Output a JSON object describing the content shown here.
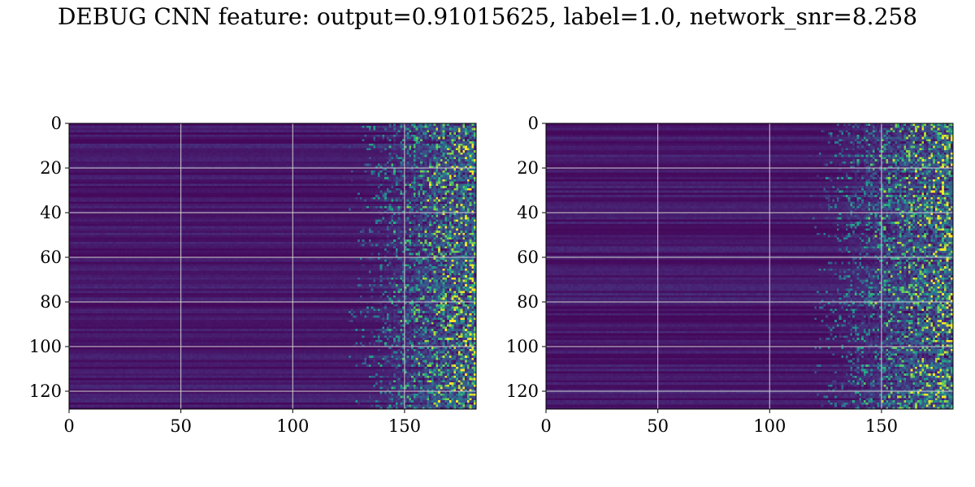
{
  "figure": {
    "title": "DEBUG CNN feature: output=0.91015625, label=1.0, network_snr=8.258"
  },
  "colors": {
    "viridis_low": "#440154",
    "viridis_mid": "#21918c",
    "viridis_high": "#fde725",
    "grid": "#d0d0d0"
  },
  "chart_data": [
    {
      "type": "heatmap",
      "name": "",
      "x_range": [
        0,
        182
      ],
      "y_range": [
        128,
        0
      ],
      "xticks": [
        0,
        50,
        100,
        150
      ],
      "yticks": [
        0,
        20,
        40,
        60,
        80,
        100,
        120
      ],
      "grid": true,
      "colormap": "viridis",
      "onset_x": 132,
      "seed": 7
    },
    {
      "type": "heatmap",
      "name": "",
      "x_range": [
        0,
        182
      ],
      "y_range": [
        128,
        0
      ],
      "xticks": [
        0,
        50,
        100,
        150
      ],
      "yticks": [
        0,
        20,
        40,
        60,
        80,
        100,
        120
      ],
      "grid": true,
      "colormap": "viridis",
      "onset_x": 126,
      "seed": 13
    }
  ]
}
